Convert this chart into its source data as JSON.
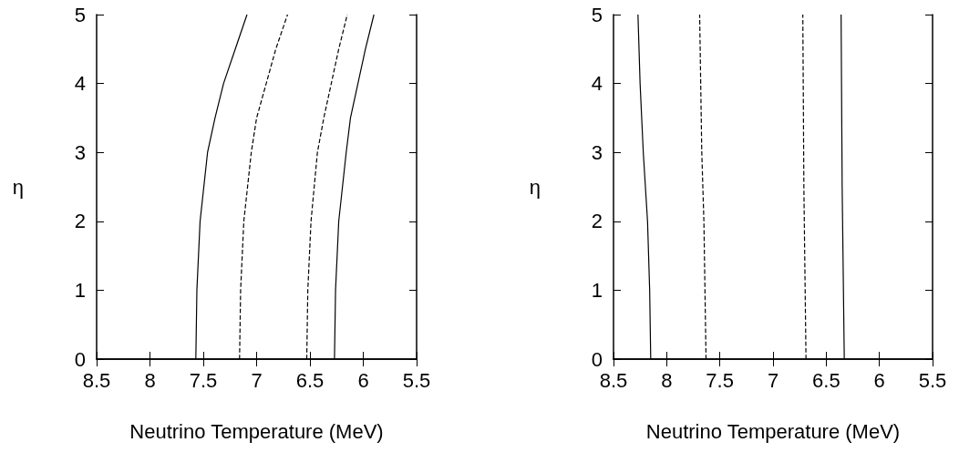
{
  "chart_data": [
    {
      "type": "line",
      "xlabel": "Neutrino Temperature (MeV)",
      "ylabel": "η",
      "xlim": [
        8.5,
        5.5
      ],
      "xticks": [
        8.5,
        8,
        7.5,
        7,
        6.5,
        6,
        5.5
      ],
      "ylim": [
        0,
        5
      ],
      "yticks": [
        0,
        1,
        2,
        3,
        4,
        5
      ],
      "marker": "none",
      "series": [
        {
          "color": "#000000",
          "line_style": "solid",
          "x": [
            7.57,
            7.56,
            7.53,
            7.46,
            7.39,
            7.31,
            7.2,
            7.09
          ],
          "values": [
            0,
            1,
            2,
            3,
            3.5,
            4,
            4.5,
            5
          ]
        },
        {
          "color": "#000000",
          "line_style": "dashed",
          "x": [
            7.16,
            7.15,
            7.12,
            7.05,
            7.0,
            6.91,
            6.82,
            6.71
          ],
          "values": [
            0,
            1,
            2,
            3,
            3.5,
            4,
            4.5,
            5
          ]
        },
        {
          "color": "#000000",
          "line_style": "dashed",
          "x": [
            6.53,
            6.52,
            6.49,
            6.43,
            6.37,
            6.3,
            6.23,
            6.15
          ],
          "values": [
            0,
            1,
            2,
            3,
            3.5,
            4,
            4.5,
            5
          ]
        },
        {
          "color": "#000000",
          "line_style": "solid",
          "x": [
            6.27,
            6.26,
            6.23,
            6.16,
            6.12,
            6.05,
            5.98,
            5.9
          ],
          "values": [
            0,
            1,
            2,
            3,
            3.5,
            4,
            4.5,
            5
          ]
        }
      ]
    },
    {
      "type": "line",
      "xlabel": "Neutrino Temperature (MeV)",
      "ylabel": "η",
      "xlim": [
        8.5,
        5.5
      ],
      "xticks": [
        8.5,
        8,
        7.5,
        7,
        6.5,
        6,
        5.5
      ],
      "ylim": [
        0,
        5
      ],
      "yticks": [
        0,
        1,
        2,
        3,
        4,
        5
      ],
      "marker": "none",
      "series": [
        {
          "color": "#000000",
          "line_style": "solid",
          "x": [
            8.15,
            8.16,
            8.18,
            8.22,
            8.25,
            8.27
          ],
          "values": [
            0,
            1,
            2,
            3,
            4,
            5
          ]
        },
        {
          "color": "#000000",
          "line_style": "dashed",
          "x": [
            7.63,
            7.65,
            7.67,
            7.68,
            7.69
          ],
          "values": [
            0,
            2,
            3,
            4,
            5
          ]
        },
        {
          "color": "#000000",
          "line_style": "dashed",
          "x": [
            6.69,
            6.71,
            6.72
          ],
          "values": [
            0,
            2.5,
            5
          ]
        },
        {
          "color": "#000000",
          "line_style": "solid",
          "x": [
            6.33,
            6.35,
            6.36
          ],
          "values": [
            0,
            2.5,
            5
          ]
        }
      ]
    }
  ]
}
